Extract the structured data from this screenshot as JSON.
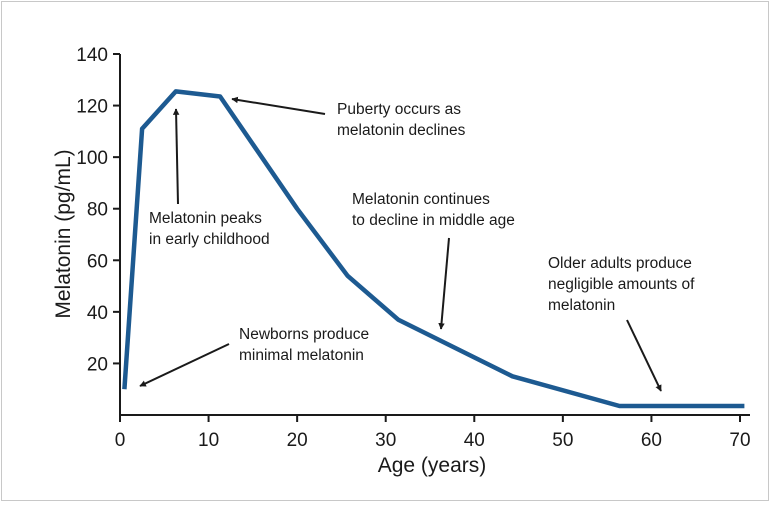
{
  "chart_data": {
    "type": "line",
    "title": "",
    "xlabel": "Age (years)",
    "ylabel": "Melatonin (pg/mL)",
    "xlim": [
      0,
      70
    ],
    "ylim": [
      0,
      140
    ],
    "x_ticks": [
      0,
      10,
      20,
      30,
      40,
      50,
      60,
      70
    ],
    "y_ticks": [
      20,
      40,
      60,
      80,
      100,
      120,
      140
    ],
    "grid": false,
    "legend": "none",
    "series": [
      {
        "color": "#1d5a91",
        "x": [
          0.5,
          2.5,
          6.3,
          11.3,
          20,
          25.7,
          31.4,
          44.3,
          56.4,
          70.5
        ],
        "y": [
          10,
          111,
          125.5,
          123.5,
          80,
          54,
          37,
          15,
          3.5,
          3.5
        ]
      }
    ],
    "annotations": [
      {
        "lines": [
          "Melatonin peaks",
          "in early childhood"
        ]
      },
      {
        "lines": [
          "Puberty occurs as",
          "melatonin declines"
        ]
      },
      {
        "lines": [
          "Melatonin continues",
          "to decline in middle age"
        ]
      },
      {
        "lines": [
          "Older adults produce",
          "negligible amounts of",
          "melatonin"
        ]
      },
      {
        "lines": [
          "Newborns produce",
          "minimal melatonin"
        ]
      }
    ]
  }
}
